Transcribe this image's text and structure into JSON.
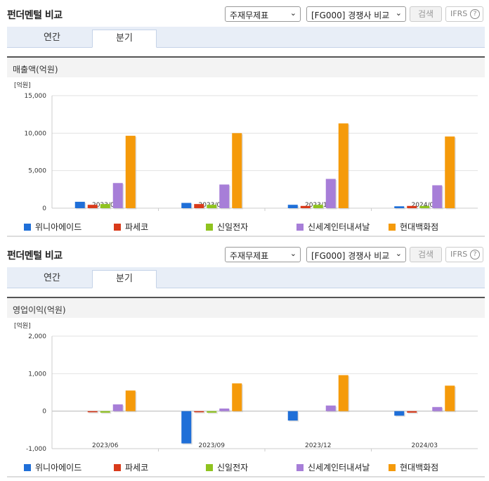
{
  "sections": [
    {
      "title": "펀더멘털 비교",
      "select1": "주재무제표",
      "select2": "[FG000] 경쟁사 비교",
      "search_label": "검색",
      "ifrs_label": "IFRS",
      "tabs": [
        "연간",
        "분기"
      ],
      "active_tab": 1,
      "metric_label": "매출액(억원)"
    },
    {
      "title": "펀더멘털 비교",
      "select1": "주재무제표",
      "select2": "[FG000] 경쟁사 비교",
      "search_label": "검색",
      "ifrs_label": "IFRS",
      "tabs": [
        "연간",
        "분기"
      ],
      "active_tab": 1,
      "metric_label": "영업이익(억원)"
    }
  ],
  "legend": [
    {
      "name": "위니아에이드",
      "color": "#1f6fd8"
    },
    {
      "name": "파세코",
      "color": "#d93a1a"
    },
    {
      "name": "신일전자",
      "color": "#8fc31f"
    },
    {
      "name": "신세계인터내셔날",
      "color": "#a77ed8"
    },
    {
      "name": "현대백화점",
      "color": "#f59a0a"
    }
  ],
  "chart_data": [
    {
      "type": "bar",
      "unit_label": "[억원]",
      "categories": [
        "2023/06",
        "2023/09",
        "2023/12",
        "2024/03"
      ],
      "ylim": [
        0,
        15000
      ],
      "yticks": [
        0,
        5000,
        10000,
        15000
      ],
      "ytick_labels": [
        "0",
        "5,000",
        "10,000",
        "15,000"
      ],
      "series": [
        {
          "name": "위니아에이드",
          "color": "#1f6fd8",
          "values": [
            850,
            700,
            450,
            250
          ]
        },
        {
          "name": "파세코",
          "color": "#d93a1a",
          "values": [
            450,
            550,
            300,
            300
          ]
        },
        {
          "name": "신일전자",
          "color": "#8fc31f",
          "values": [
            550,
            450,
            450,
            300
          ]
        },
        {
          "name": "신세계인터내셔날",
          "color": "#a77ed8",
          "values": [
            3350,
            3150,
            3900,
            3050
          ]
        },
        {
          "name": "현대백화점",
          "color": "#f59a0a",
          "values": [
            9650,
            10000,
            11300,
            9550
          ]
        }
      ]
    },
    {
      "type": "bar",
      "unit_label": "[억원]",
      "categories": [
        "2023/06",
        "2023/09",
        "2023/12",
        "2024/03"
      ],
      "ylim": [
        -1000,
        2000
      ],
      "yticks": [
        -1000,
        0,
        1000,
        2000
      ],
      "ytick_labels": [
        "-1,000",
        "0",
        "1,000",
        "2,000"
      ],
      "series": [
        {
          "name": "위니아에이드",
          "color": "#1f6fd8",
          "values": [
            0,
            -860,
            -250,
            -120
          ]
        },
        {
          "name": "파세코",
          "color": "#d93a1a",
          "values": [
            -30,
            -30,
            0,
            -40
          ]
        },
        {
          "name": "신일전자",
          "color": "#8fc31f",
          "values": [
            -40,
            -40,
            0,
            0
          ]
        },
        {
          "name": "신세계인터내셔날",
          "color": "#a77ed8",
          "values": [
            180,
            70,
            150,
            110
          ]
        },
        {
          "name": "현대백화점",
          "color": "#f59a0a",
          "values": [
            550,
            740,
            960,
            680
          ]
        }
      ]
    }
  ]
}
